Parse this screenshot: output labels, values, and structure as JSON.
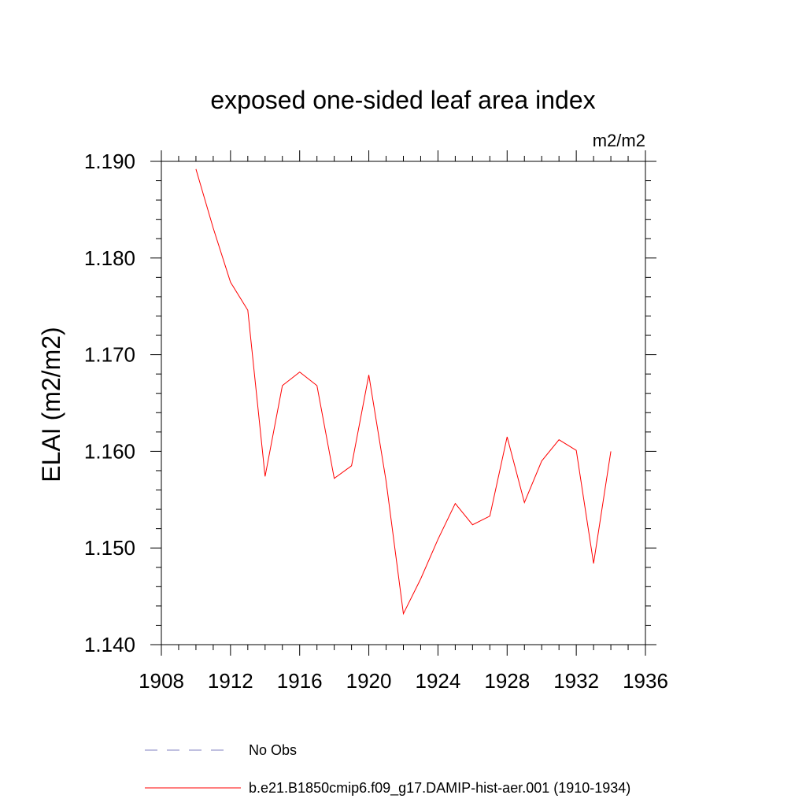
{
  "chart_data": {
    "type": "line",
    "title": "exposed one-sided leaf area index",
    "units_label": "m2/m2",
    "ylabel": "ELAI  (m2/m2)",
    "xlabel": "",
    "xlim": [
      1908,
      1936
    ],
    "ylim": [
      1.14,
      1.19
    ],
    "x_ticks": [
      1908,
      1912,
      1916,
      1920,
      1924,
      1928,
      1932,
      1936
    ],
    "x_tick_labels": [
      "1908",
      "1912",
      "1916",
      "1920",
      "1924",
      "1928",
      "1932",
      "1936"
    ],
    "y_ticks": [
      1.14,
      1.15,
      1.16,
      1.17,
      1.18,
      1.19
    ],
    "y_tick_labels": [
      "1.140",
      "1.150",
      "1.160",
      "1.170",
      "1.180",
      "1.190"
    ],
    "grid": false,
    "legend_position": "bottom",
    "series": [
      {
        "name": "b.e21.B1850cmip6.f09_g17.DAMIP-hist-aer.001 (1910-1934)",
        "color": "#ff0000",
        "style": "solid",
        "x": [
          1910,
          1911,
          1912,
          1913,
          1914,
          1915,
          1916,
          1917,
          1918,
          1919,
          1920,
          1921,
          1922,
          1923,
          1924,
          1925,
          1926,
          1927,
          1928,
          1929,
          1930,
          1931,
          1932,
          1933,
          1934
        ],
        "values": [
          1.1892,
          1.1831,
          1.1775,
          1.1746,
          1.1574,
          1.1668,
          1.1682,
          1.1668,
          1.1572,
          1.1585,
          1.1679,
          1.1569,
          1.1432,
          1.1468,
          1.1509,
          1.1546,
          1.1524,
          1.1533,
          1.1615,
          1.1547,
          1.159,
          1.1612,
          1.1601,
          1.1484,
          1.16
        ]
      },
      {
        "name": "No Obs",
        "color": "#8080c0",
        "style": "dashed",
        "x": [],
        "values": []
      }
    ]
  }
}
